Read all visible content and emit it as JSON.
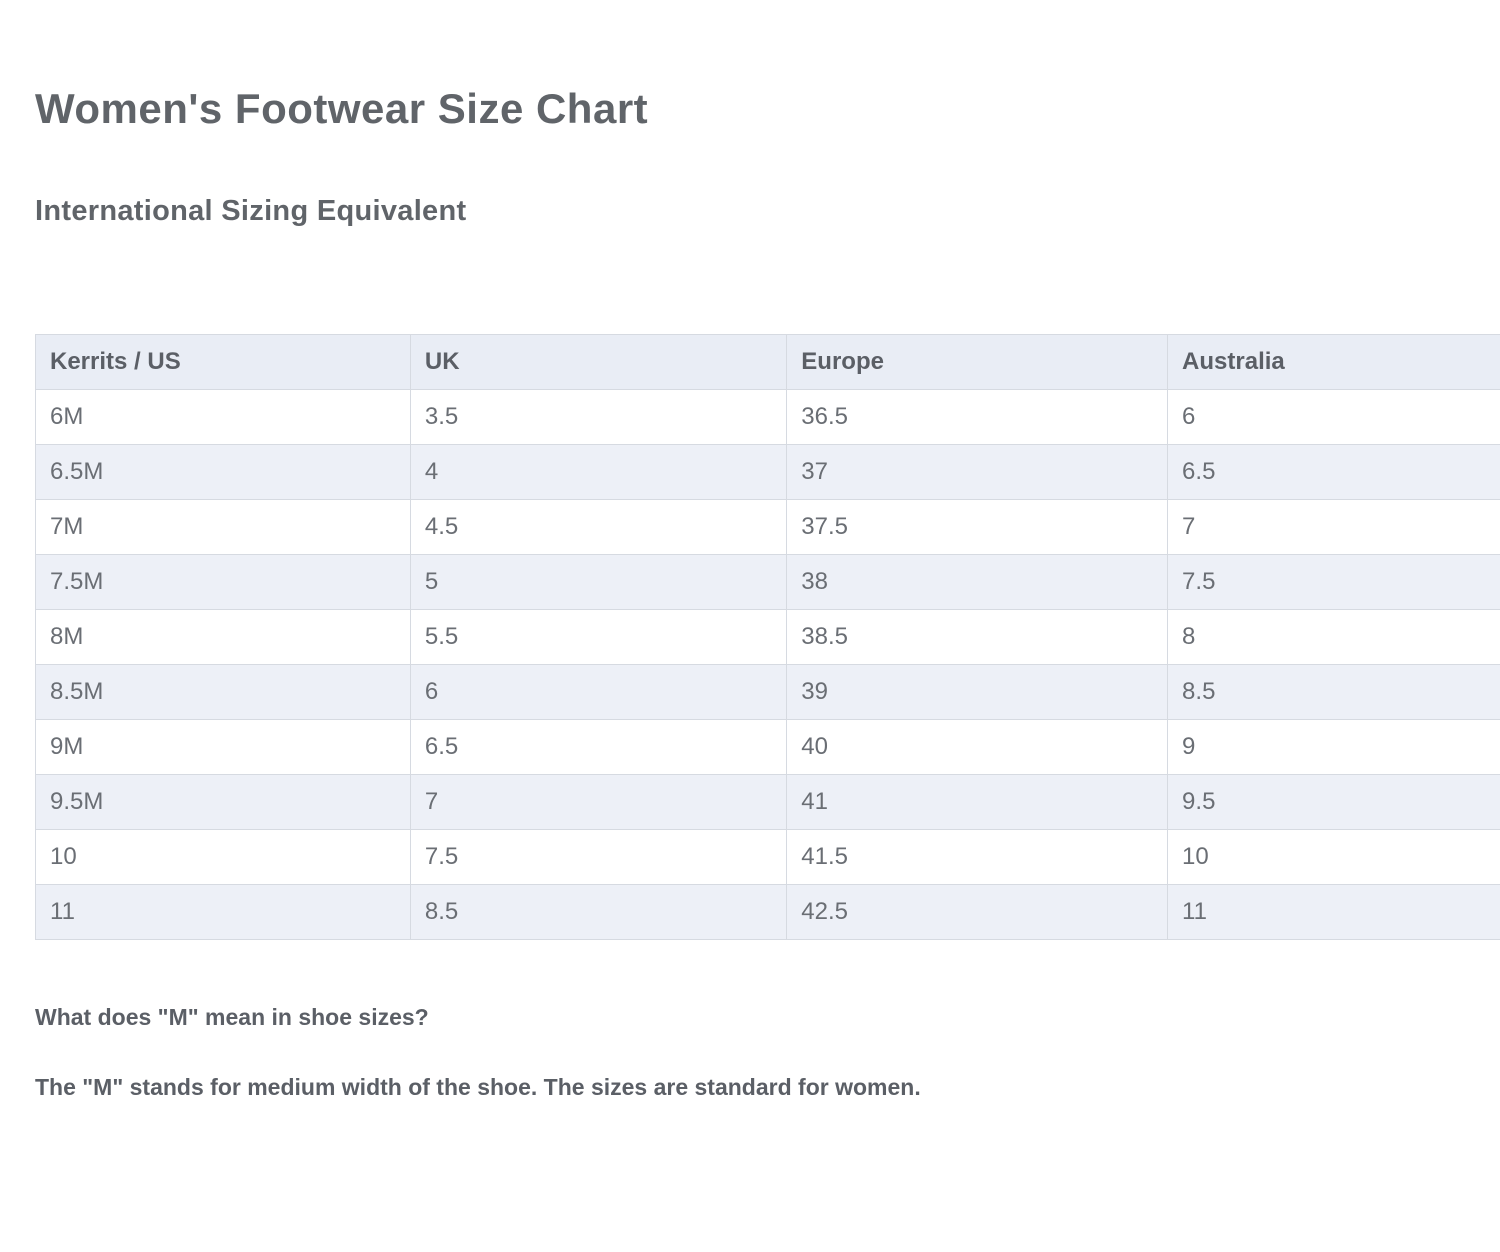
{
  "page": {
    "title": "Women's Footwear Size Chart",
    "subtitle": "International Sizing Equivalent"
  },
  "table": {
    "headers": [
      "Kerrits / US",
      "UK",
      "Europe",
      "Australia"
    ],
    "rows": [
      [
        "6M",
        "3.5",
        "36.5",
        "6"
      ],
      [
        "6.5M",
        "4",
        "37",
        "6.5"
      ],
      [
        "7M",
        "4.5",
        "37.5",
        "7"
      ],
      [
        "7.5M",
        "5",
        "38",
        "7.5"
      ],
      [
        "8M",
        "5.5",
        "38.5",
        "8"
      ],
      [
        "8.5M",
        "6",
        "39",
        "8.5"
      ],
      [
        "9M",
        "6.5",
        "40",
        "9"
      ],
      [
        "9.5M",
        "7",
        "41",
        "9.5"
      ],
      [
        "10",
        "7.5",
        "41.5",
        "10"
      ],
      [
        "11",
        "8.5",
        "42.5",
        "11"
      ]
    ]
  },
  "faq": {
    "question": "What does \"M\" mean in shoe sizes?",
    "answer": "The \"M\" stands for medium width of the shoe. The sizes are standard for women."
  },
  "colors": {
    "heading_text": "#606469",
    "cell_text": "#6a6e74",
    "header_bg": "#e9edf5",
    "stripe_bg": "#edf0f7",
    "border": "#d6dae1"
  }
}
